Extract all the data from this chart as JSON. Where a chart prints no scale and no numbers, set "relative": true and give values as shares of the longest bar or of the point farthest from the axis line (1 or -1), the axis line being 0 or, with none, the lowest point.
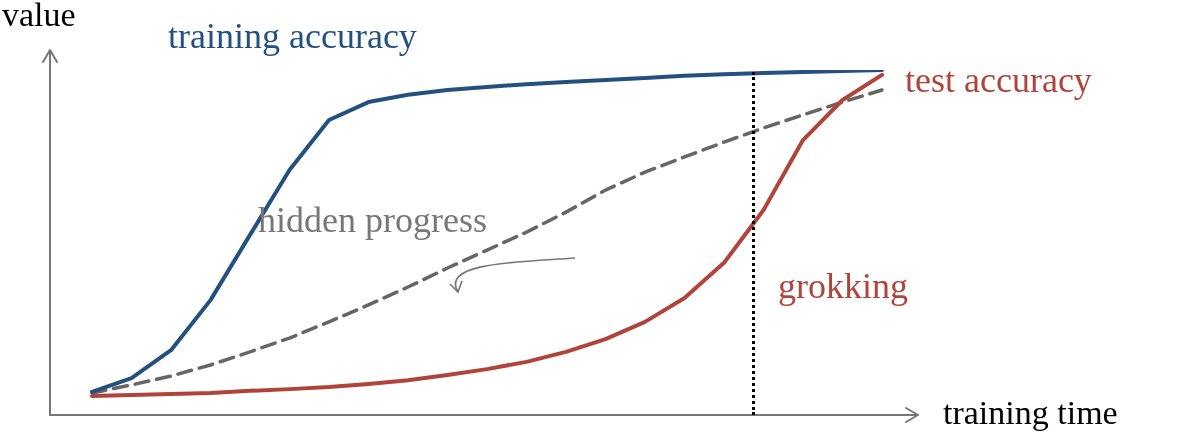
{
  "chart_data": {
    "type": "line",
    "relative": true,
    "xlabel": "training time",
    "ylabel": "value",
    "legend": false,
    "marker": "none",
    "tick_labels": false,
    "categories": [
      null,
      null,
      null,
      null,
      null,
      null,
      null,
      null,
      null,
      null,
      null,
      null,
      null,
      null,
      null,
      null,
      null,
      null,
      null,
      null,
      null
    ],
    "series": [
      {
        "name": "training accuracy",
        "color": "#245080",
        "line_style": "solid",
        "values": [
          0.067,
          0.107,
          0.188,
          0.333,
          0.522,
          0.71,
          0.855,
          0.907,
          0.928,
          0.942,
          0.951,
          0.959,
          0.965,
          0.971,
          0.977,
          0.983,
          0.988,
          0.991,
          0.994,
          0.997,
          1
        ]
      },
      {
        "name": "test accuracy",
        "color": "#b0443a",
        "line_style": "solid",
        "values": [
          0.055,
          0.058,
          0.061,
          0.064,
          0.07,
          0.075,
          0.081,
          0.09,
          0.101,
          0.116,
          0.133,
          0.154,
          0.183,
          0.22,
          0.27,
          0.339,
          0.441,
          0.594,
          0.797,
          0.913,
          0.986
        ]
      },
      {
        "name": "hidden progress",
        "color": "#666666",
        "line_style": "dashed",
        "values": [
          0.064,
          0.087,
          0.113,
          0.145,
          0.183,
          0.223,
          0.27,
          0.319,
          0.371,
          0.426,
          0.478,
          0.53,
          0.588,
          0.652,
          0.704,
          0.748,
          0.791,
          0.832,
          0.87,
          0.907,
          0.942
        ]
      }
    ],
    "annotations": [
      "grokking"
    ]
  }
}
